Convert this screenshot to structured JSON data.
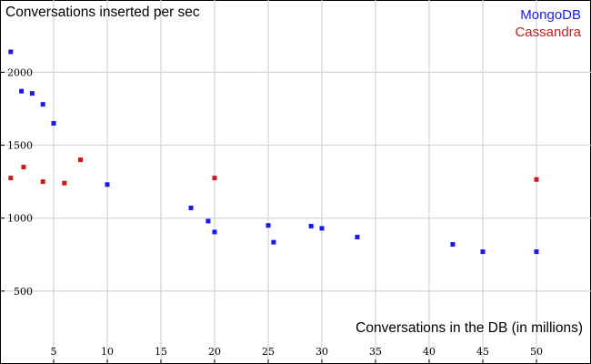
{
  "chart_data": {
    "type": "scatter",
    "title": "",
    "ylabel": "Conversations inserted per sec",
    "xlabel": "Conversations in the DB (in millions)",
    "xlim": [
      0,
      55
    ],
    "ylim": [
      0,
      2400
    ],
    "x_ticks": [
      5,
      10,
      15,
      20,
      25,
      30,
      35,
      40,
      45,
      50
    ],
    "y_ticks": [
      500,
      1000,
      1500,
      2000
    ],
    "grid": true,
    "legend_position": "top-right",
    "series": [
      {
        "name": "MongoDB",
        "color": "#1a1aee",
        "points": [
          {
            "x": 1,
            "y": 2140
          },
          {
            "x": 2,
            "y": 1870
          },
          {
            "x": 3,
            "y": 1855
          },
          {
            "x": 4,
            "y": 1780
          },
          {
            "x": 5,
            "y": 1650
          },
          {
            "x": 10,
            "y": 1230
          },
          {
            "x": 17.8,
            "y": 1070
          },
          {
            "x": 19.4,
            "y": 980
          },
          {
            "x": 20,
            "y": 905
          },
          {
            "x": 25,
            "y": 950
          },
          {
            "x": 25.5,
            "y": 835
          },
          {
            "x": 29,
            "y": 945
          },
          {
            "x": 30,
            "y": 930
          },
          {
            "x": 33.3,
            "y": 870
          },
          {
            "x": 42.2,
            "y": 820
          },
          {
            "x": 45,
            "y": 770
          },
          {
            "x": 50,
            "y": 770
          }
        ]
      },
      {
        "name": "Cassandra",
        "color": "#cc1a1a",
        "points": [
          {
            "x": 1,
            "y": 1275
          },
          {
            "x": 2.2,
            "y": 1350
          },
          {
            "x": 4,
            "y": 1250
          },
          {
            "x": 6,
            "y": 1240
          },
          {
            "x": 7.5,
            "y": 1400
          },
          {
            "x": 20,
            "y": 1275
          },
          {
            "x": 50,
            "y": 1265
          }
        ]
      }
    ]
  }
}
